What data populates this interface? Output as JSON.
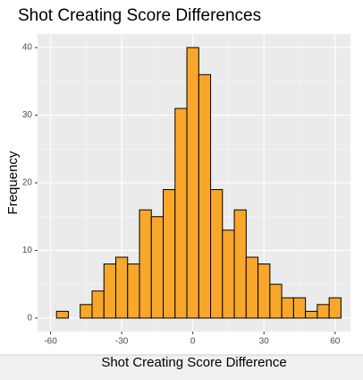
{
  "chart_data": {
    "type": "histogram",
    "title": "Shot Creating Score Differences",
    "xlabel": "Shot Creating Score Difference",
    "ylabel": "Frequency",
    "bins": [
      -57.5,
      -52.5,
      -47.5,
      -42.5,
      -37.5,
      -32.5,
      -27.5,
      -22.5,
      -17.5,
      -12.5,
      -7.5,
      -2.5,
      2.5,
      7.5,
      12.5,
      17.5,
      22.5,
      27.5,
      32.5,
      37.5,
      42.5,
      47.5,
      52.5,
      57.5,
      62.5
    ],
    "values": [
      1,
      0,
      2,
      4,
      8,
      9,
      8,
      16,
      15,
      19,
      31,
      40,
      36,
      19,
      13,
      16,
      9,
      8,
      5,
      3,
      3,
      1,
      2,
      3
    ],
    "color": "#f9a72b",
    "xlim": [
      -65.5,
      66.5
    ],
    "xticks": [
      -60,
      -30,
      0,
      30,
      60
    ],
    "ylim": [
      -2,
      42
    ],
    "yticks": [
      0,
      10,
      20,
      30,
      40
    ],
    "grid": true
  }
}
